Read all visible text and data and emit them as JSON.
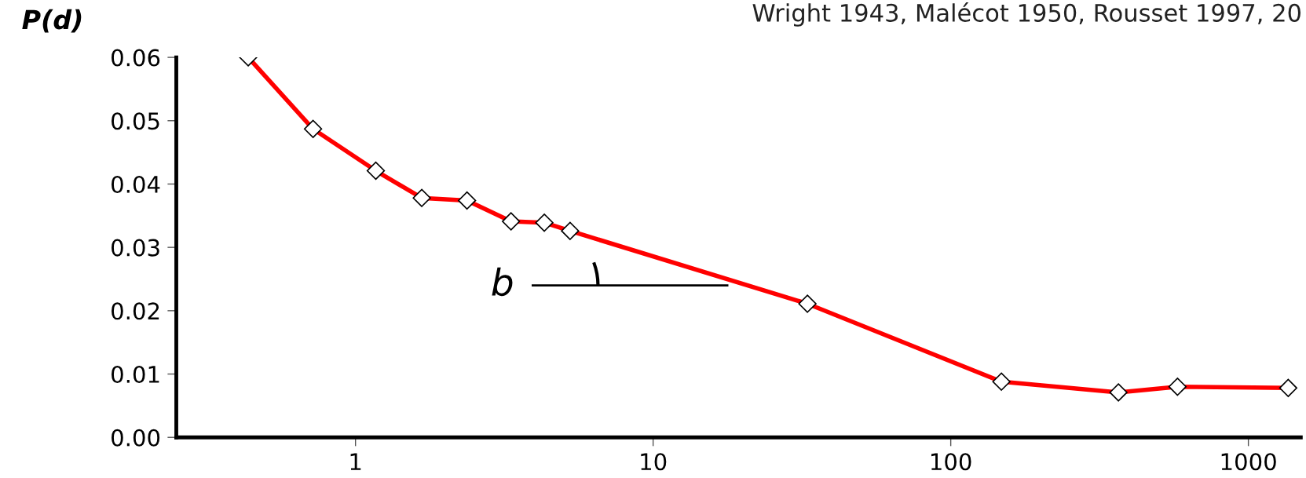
{
  "chart_data": {
    "type": "line",
    "title": "Wright 1943, Malécot 1950, Rousset 1997, 20",
    "ylabel": "P(d)",
    "x": [
      0.436,
      0.72,
      1.17,
      1.67,
      2.37,
      3.33,
      4.31,
      5.26,
      33.0,
      148,
      366,
      578,
      1361
    ],
    "series": [
      {
        "color": "#ff0000",
        "values": [
          0.06,
          0.0487,
          0.0421,
          0.0378,
          0.0374,
          0.0341,
          0.0339,
          0.0326,
          0.0211,
          0.0088,
          0.0071,
          0.008,
          0.0078
        ]
      }
    ],
    "log": "x",
    "marker": "diamond",
    "line_style": "solid",
    "grid": false,
    "legend": false,
    "xlim": [
      0.25,
      1500
    ],
    "xticks": [
      1,
      10,
      100,
      1000
    ],
    "ylim": [
      0,
      0.06
    ],
    "yticks": [
      {
        "value": 0,
        "label": "0.00"
      },
      0.01,
      0.02,
      0.03,
      0.04,
      0.05,
      0.06
    ],
    "annotations": [
      "b"
    ]
  }
}
